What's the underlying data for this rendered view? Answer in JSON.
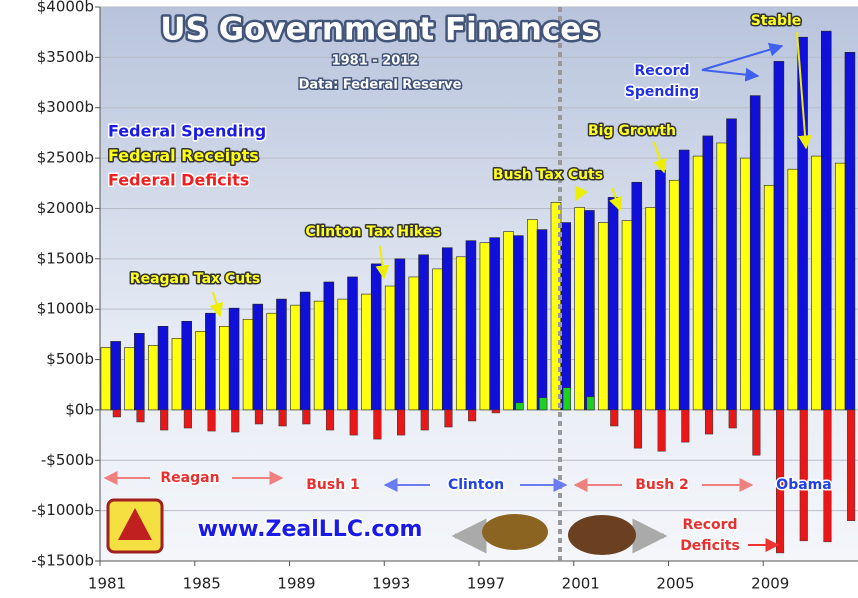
{
  "chart_data": {
    "type": "bar",
    "title": "US Government Finances",
    "subtitle": "1981 - 2012",
    "source": "Data: Federal Reserve",
    "x": [
      1981,
      1982,
      1983,
      1984,
      1985,
      1986,
      1987,
      1988,
      1989,
      1990,
      1991,
      1992,
      1993,
      1994,
      1995,
      1996,
      1997,
      1998,
      1999,
      2000,
      2001,
      2002,
      2003,
      2004,
      2005,
      2006,
      2007,
      2008,
      2009,
      2010,
      2011,
      2012
    ],
    "series": [
      {
        "name": "Federal Spending",
        "color": "#1010d8",
        "values": [
          680,
          760,
          830,
          880,
          960,
          1010,
          1050,
          1100,
          1170,
          1270,
          1320,
          1450,
          1500,
          1540,
          1610,
          1680,
          1710,
          1730,
          1790,
          1860,
          1980,
          2110,
          2260,
          2380,
          2580,
          2720,
          2890,
          3120,
          3460,
          3700,
          3760,
          3550
        ]
      },
      {
        "name": "Federal Receipts",
        "color": "#ffff10",
        "values": [
          620,
          620,
          640,
          710,
          780,
          830,
          900,
          960,
          1040,
          1080,
          1100,
          1150,
          1230,
          1320,
          1400,
          1520,
          1660,
          1770,
          1890,
          2060,
          2010,
          1860,
          1880,
          2010,
          2280,
          2520,
          2650,
          2500,
          2230,
          2390,
          2520,
          2450
        ]
      },
      {
        "name": "Federal Deficits",
        "color": "#e81818",
        "positive_color": "#20d020",
        "values": [
          -70,
          -120,
          -200,
          -180,
          -210,
          -220,
          -140,
          -160,
          -140,
          -200,
          -250,
          -290,
          -250,
          -200,
          -170,
          -110,
          -30,
          70,
          120,
          220,
          130,
          -160,
          -380,
          -410,
          -320,
          -240,
          -180,
          -450,
          -1420,
          -1300,
          -1310,
          -1100
        ]
      }
    ],
    "xlim": [
      1981,
      2013
    ],
    "xticks": [
      1981,
      1985,
      1989,
      1993,
      1997,
      2001,
      2005,
      2009
    ],
    "ylim": [
      -1500,
      4000
    ],
    "yticks": [
      {
        "value": -1500,
        "label": "-$1500b"
      },
      {
        "value": -1000,
        "label": "-$1000b"
      },
      {
        "value": -500,
        "label": "-$500b"
      },
      {
        "value": 0,
        "label": "$0b"
      },
      {
        "value": 500,
        "label": "$500b"
      },
      {
        "value": 1000,
        "label": "$1000b"
      },
      {
        "value": 1500,
        "label": "$1500b"
      },
      {
        "value": 2000,
        "label": "$2000b"
      },
      {
        "value": 2500,
        "label": "$2500b"
      },
      {
        "value": 3000,
        "label": "$3000b"
      },
      {
        "value": 3500,
        "label": "$3500b"
      },
      {
        "value": 4000,
        "label": "$4000b"
      }
    ],
    "grid": true,
    "annotations": [
      "Reagan Tax Cuts",
      "Clinton Tax Hikes",
      "Bush Tax Cuts",
      "Big Growth",
      "Record",
      "Spending",
      "Stable"
    ],
    "eras": [
      "Reagan",
      "Bush 1",
      "Clinton",
      "Bush 2",
      "Obama"
    ],
    "footer": [
      "www.ZealLLC.com",
      "Record",
      "Deficits"
    ]
  }
}
